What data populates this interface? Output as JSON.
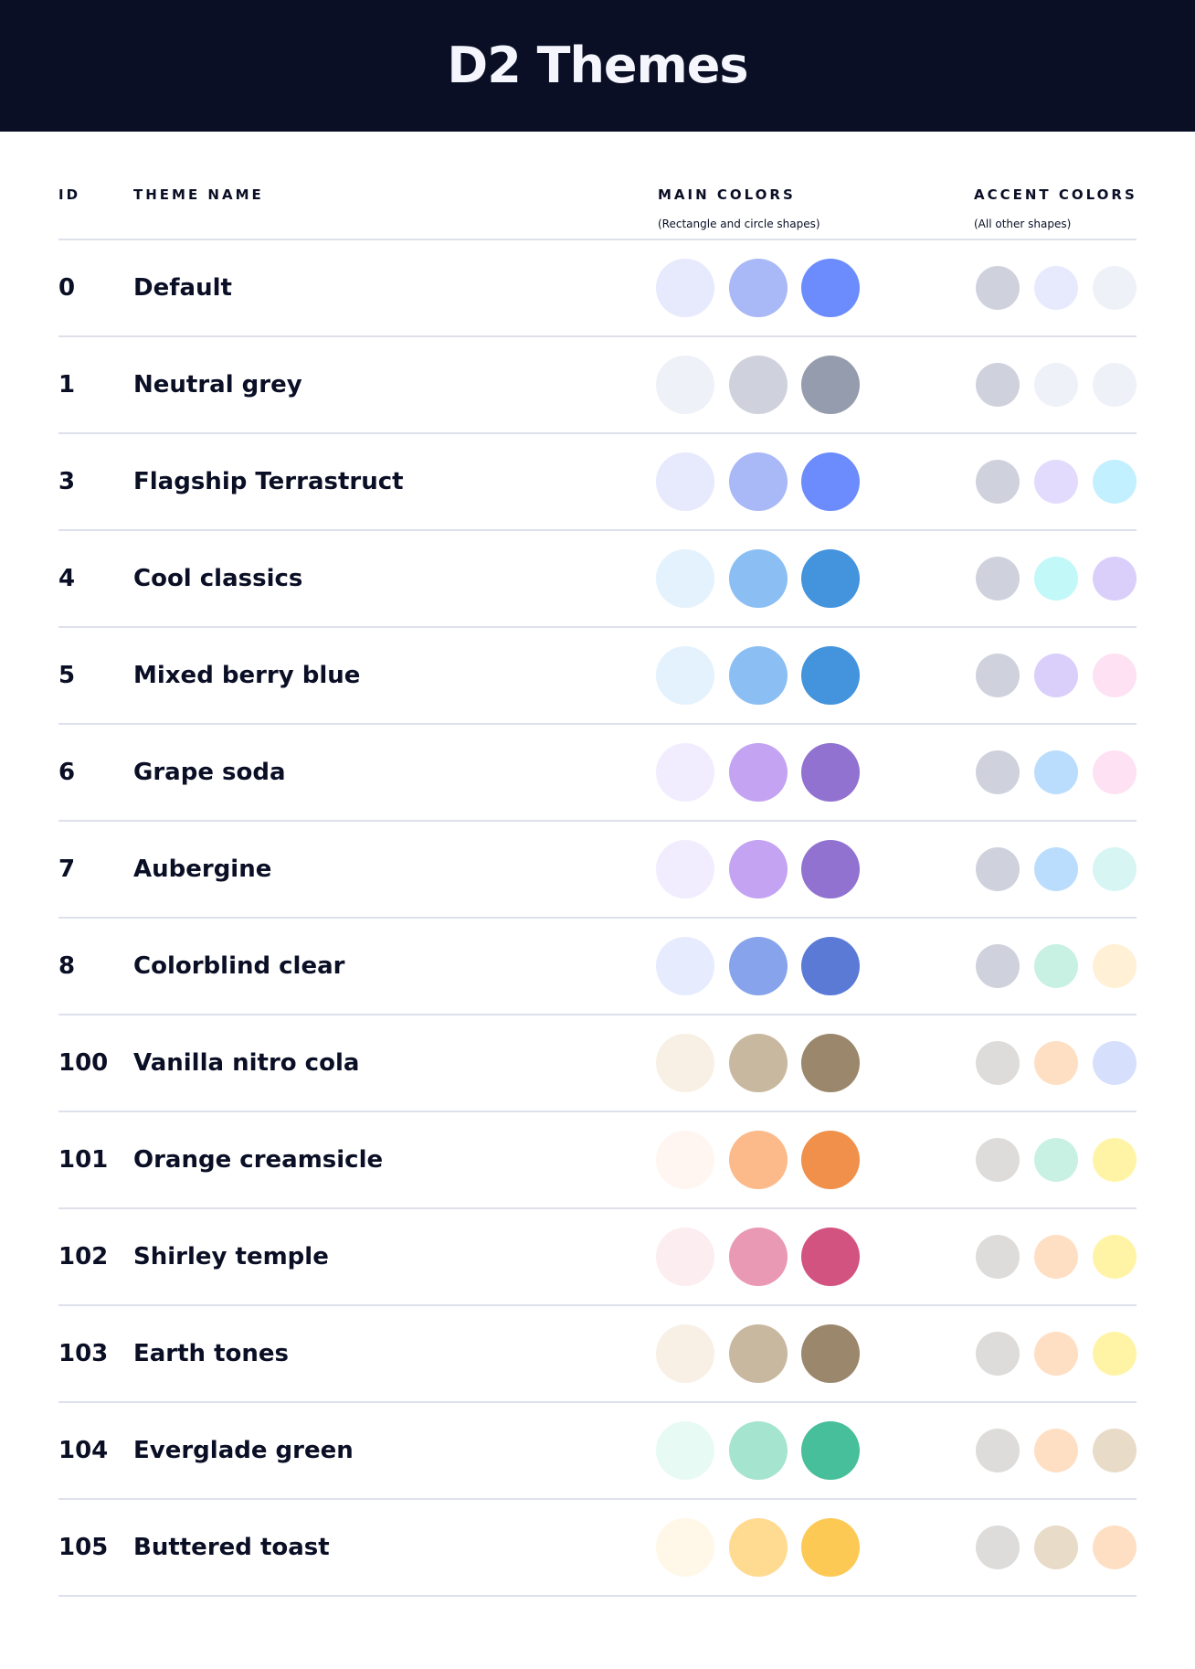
{
  "title": "D2 Themes",
  "headers": {
    "id": "ID",
    "name": "THEME NAME",
    "main": "MAIN COLORS",
    "main_sub": "(Rectangle and circle shapes)",
    "accent": "ACCENT COLORS",
    "accent_sub": "(All other shapes)"
  },
  "themes": [
    {
      "id": "0",
      "name": "Default",
      "main": [
        "#E7E9FD",
        "#A9B8F6",
        "#6C8CFD"
      ],
      "accent": [
        "#CFD2DD",
        "#E7E9FD",
        "#EEF1F8"
      ]
    },
    {
      "id": "1",
      "name": "Neutral grey",
      "main": [
        "#EEF1F8",
        "#CFD2DD",
        "#959CAE"
      ],
      "accent": [
        "#CFD2DD",
        "#EEF1F8",
        "#EEF1F8"
      ]
    },
    {
      "id": "3",
      "name": "Flagship Terrastruct",
      "main": [
        "#E7E9FD",
        "#A9B8F6",
        "#6C8CFD"
      ],
      "accent": [
        "#CFD2DD",
        "#E3DBFD",
        "#C3F0FE"
      ]
    },
    {
      "id": "4",
      "name": "Cool classics",
      "main": [
        "#E3F2FD",
        "#8BBFF3",
        "#4393DD"
      ],
      "accent": [
        "#CFD2DD",
        "#C3F8F8",
        "#DACEFB"
      ]
    },
    {
      "id": "5",
      "name": "Mixed berry blue",
      "main": [
        "#E3F2FD",
        "#8BBFF3",
        "#4393DD"
      ],
      "accent": [
        "#CFD2DD",
        "#DACEFB",
        "#FEE1F3"
      ]
    },
    {
      "id": "6",
      "name": "Grape soda",
      "main": [
        "#F2EDFE",
        "#C4A3F3",
        "#9172D1"
      ],
      "accent": [
        "#CFD2DD",
        "#BBDDFD",
        "#FEE1F3"
      ]
    },
    {
      "id": "7",
      "name": "Aubergine",
      "main": [
        "#F2EDFE",
        "#C4A3F3",
        "#9172D1"
      ],
      "accent": [
        "#CFD2DD",
        "#BBDDFD",
        "#D7F5F3"
      ]
    },
    {
      "id": "8",
      "name": "Colorblind clear",
      "main": [
        "#E7EBFE",
        "#86A3EB",
        "#5A7AD6"
      ],
      "accent": [
        "#CFD2DD",
        "#C9F1E3",
        "#FFF0D6"
      ]
    },
    {
      "id": "100",
      "name": "Vanilla nitro cola",
      "main": [
        "#F8F0E5",
        "#C9B8A0",
        "#9B876C"
      ],
      "accent": [
        "#DDDCDA",
        "#FFDFC4",
        "#D6E0FC"
      ]
    },
    {
      "id": "101",
      "name": "Orange creamsicle",
      "main": [
        "#FFF6F1",
        "#FCBA8A",
        "#F0904A"
      ],
      "accent": [
        "#DDDCDA",
        "#C9F1E3",
        "#FFF4A6"
      ]
    },
    {
      "id": "102",
      "name": "Shirley temple",
      "main": [
        "#FCEDF1",
        "#EA99B4",
        "#D25380"
      ],
      "accent": [
        "#DDDCDA",
        "#FFDFC4",
        "#FFF4A6"
      ]
    },
    {
      "id": "103",
      "name": "Earth tones",
      "main": [
        "#F8F0E5",
        "#C9B8A0",
        "#9B876C"
      ],
      "accent": [
        "#DDDCDA",
        "#FFDFC4",
        "#FFF4A6"
      ]
    },
    {
      "id": "104",
      "name": "Everglade green",
      "main": [
        "#E8FAF4",
        "#A5E4CF",
        "#48BF9B"
      ],
      "accent": [
        "#DDDCDA",
        "#FFDFC4",
        "#E8DBC8"
      ]
    },
    {
      "id": "105",
      "name": "Buttered toast",
      "main": [
        "#FFF8E8",
        "#FFDA91",
        "#FCC955"
      ],
      "accent": [
        "#DDDCDA",
        "#E8DBC8",
        "#FFDFC4"
      ]
    }
  ]
}
